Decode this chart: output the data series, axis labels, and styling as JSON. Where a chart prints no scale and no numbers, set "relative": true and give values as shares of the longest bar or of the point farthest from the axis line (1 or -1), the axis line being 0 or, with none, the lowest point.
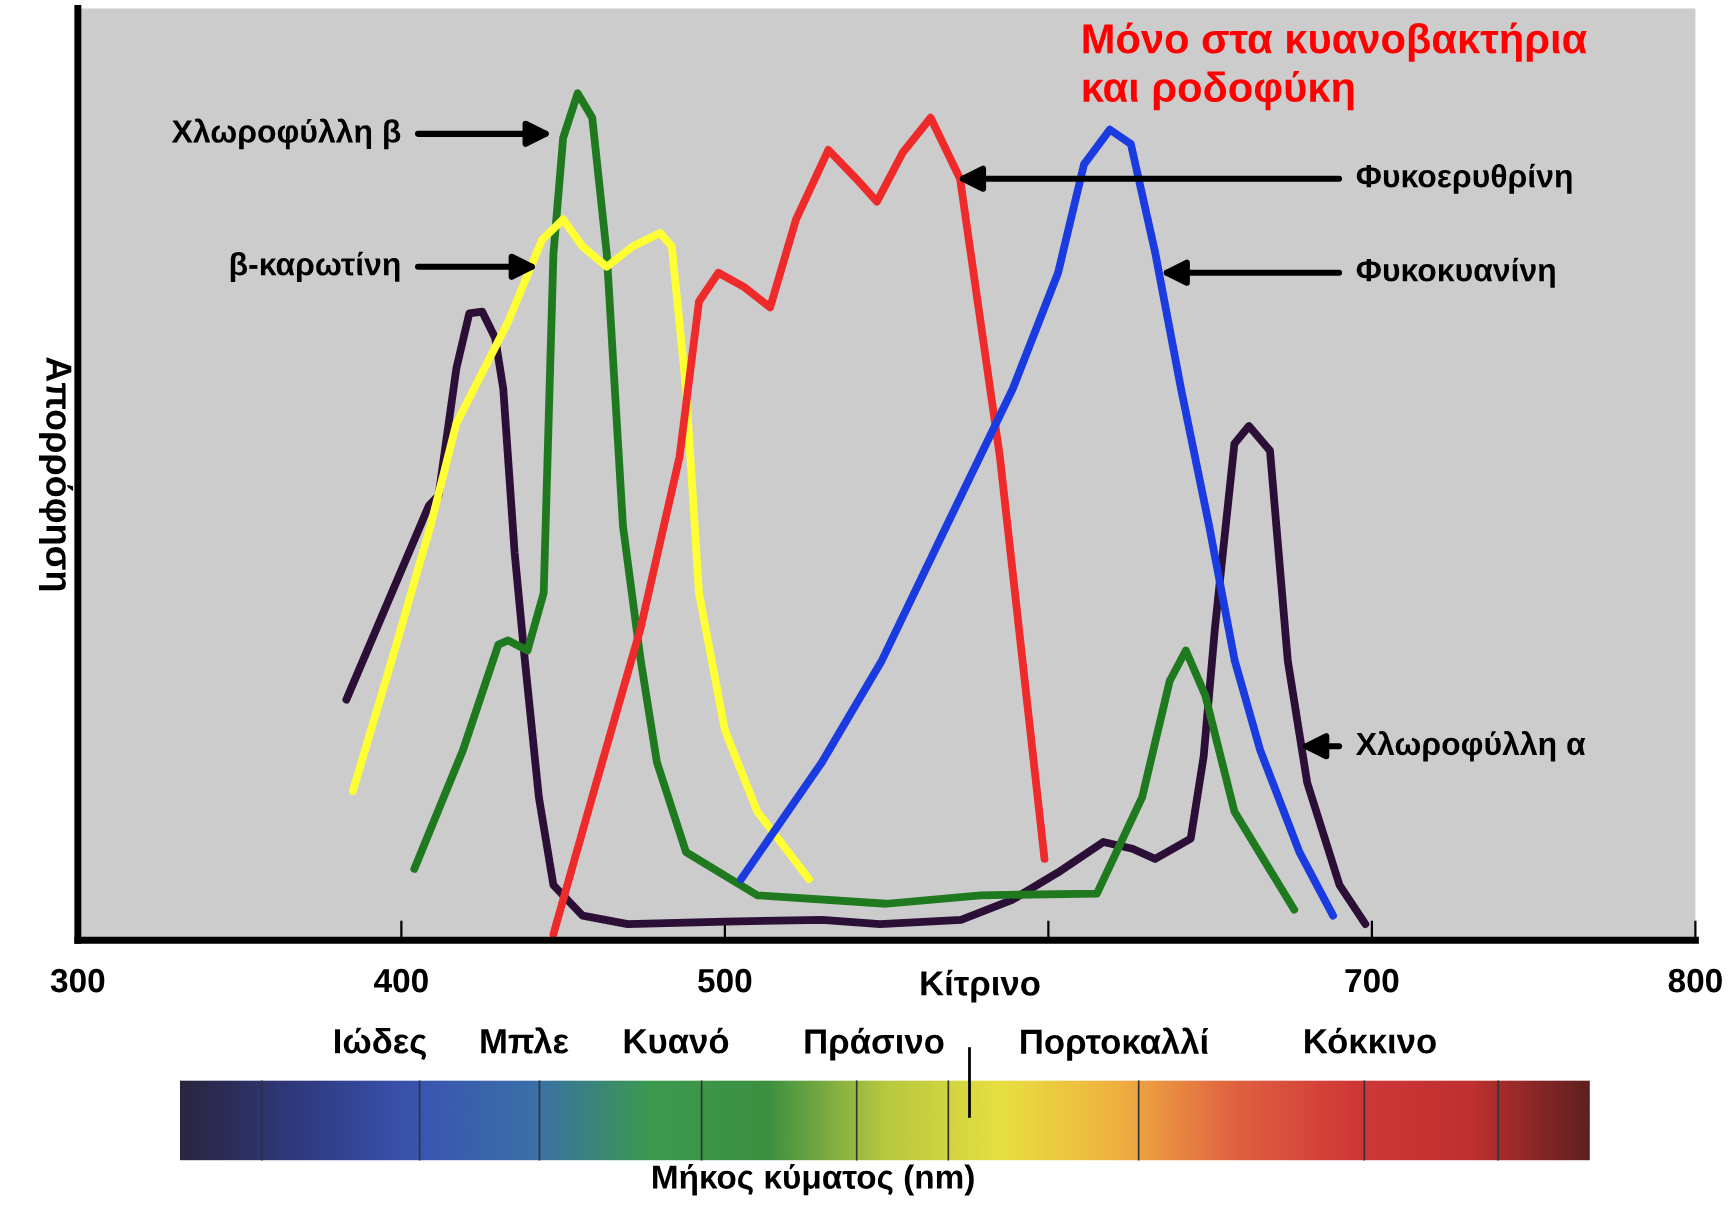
{
  "chart_data": [
    {
      "type": "line",
      "ylabel": "Απορρόφηση",
      "xlabel": "Μήκος κύματος (nm)",
      "relative": true,
      "xlim": [
        300,
        800
      ],
      "xticks": [
        300,
        400,
        500,
        {
          "value": 600,
          "label": null
        },
        700,
        800
      ],
      "grid": false,
      "legend": false,
      "marker": "none",
      "line_style": "solid",
      "series": [
        {
          "color": "#2b0f36",
          "x": [
            383,
            408.5,
            411.5,
            417,
            421,
            425,
            429,
            431.5,
            435,
            438,
            442.5,
            447,
            456,
            470,
            500,
            530,
            548,
            573,
            589,
            603,
            617,
            626,
            633,
            644,
            648,
            651.5,
            657.5,
            662,
            668.5,
            674,
            680,
            690,
            698
          ],
          "values": [
            0.284,
            0.513,
            0.525,
            0.675,
            0.74,
            0.742,
            0.711,
            0.651,
            0.458,
            0.337,
            0.169,
            0.065,
            0.029,
            0.019,
            0.022,
            0.024,
            0.019,
            0.024,
            0.048,
            0.08,
            0.116,
            0.108,
            0.096,
            0.12,
            0.217,
            0.369,
            0.586,
            0.607,
            0.578,
            0.33,
            0.186,
            0.065,
            0.019
          ]
        },
        {
          "color": "#1f7a1f",
          "x": [
            404,
            419,
            430,
            433,
            439,
            444,
            447,
            450,
            454.5,
            459,
            463.5,
            468.5,
            474,
            479,
            488,
            510,
            550,
            579,
            615,
            629,
            637.5,
            642.5,
            648.5,
            657.5,
            676
          ],
          "values": [
            0.084,
            0.224,
            0.349,
            0.354,
            0.342,
            0.41,
            0.81,
            0.947,
            1.0,
            0.971,
            0.81,
            0.489,
            0.33,
            0.21,
            0.104,
            0.053,
            0.043,
            0.053,
            0.055,
            0.169,
            0.306,
            0.342,
            0.289,
            0.152,
            0.036
          ]
        },
        {
          "color": "#ffff33",
          "x": [
            385,
            397,
            409,
            417,
            433,
            443.5,
            450,
            456,
            463.5,
            471.5,
            480,
            483.6,
            488,
            492,
            500,
            510,
            526
          ],
          "values": [
            0.176,
            0.33,
            0.489,
            0.61,
            0.73,
            0.827,
            0.851,
            0.819,
            0.795,
            0.819,
            0.835,
            0.819,
            0.651,
            0.41,
            0.248,
            0.152,
            0.072
          ]
        },
        {
          "color": "#ee2a2a",
          "x": [
            447,
            459,
            474,
            486,
            492,
            498,
            506,
            514,
            522,
            532,
            540.6,
            547,
            555,
            563.6,
            572.7,
            585,
            598.8
          ],
          "values": [
            0.007,
            0.169,
            0.369,
            0.571,
            0.754,
            0.788,
            0.771,
            0.747,
            0.851,
            0.933,
            0.899,
            0.872,
            0.93,
            0.971,
            0.899,
            0.571,
            0.096
          ]
        },
        {
          "color": "#1a3be0",
          "x": [
            505,
            530,
            548.5,
            568.5,
            589,
            603,
            611,
            619,
            625.5,
            633,
            641,
            649.7,
            657.6,
            665.5,
            677.6,
            688
          ],
          "values": [
            0.072,
            0.21,
            0.33,
            0.489,
            0.651,
            0.788,
            0.916,
            0.957,
            0.94,
            0.812,
            0.651,
            0.489,
            0.33,
            0.224,
            0.104,
            0.029
          ]
        }
      ],
      "annotations": [
        {
          "text": "Χλωροφύλλη β",
          "x": 446.7,
          "y": 0.952
        },
        {
          "text": "β-καρωτίνη",
          "x": 442.4,
          "y": 0.795
        },
        {
          "text": "Φυκοερυθρίνη",
          "x": 571.5,
          "y": 0.899
        },
        {
          "text": "Φυκοκυανίνη",
          "x": 634.5,
          "y": 0.788
        },
        {
          "text": "Χλωροφύλλη α",
          "x": 677.6,
          "y": 0.229
        },
        "Μόνο στα κυανοβακτήρια\nκαι ροδοφύκη"
      ]
    },
    {
      "type": "other",
      "annotations": [
        "Ιώδες",
        "Μπλε",
        "Κυανό",
        "Πράσινο",
        "Κίτρινο",
        "Πορτοκαλλί",
        "Κόκκινο"
      ]
    }
  ]
}
